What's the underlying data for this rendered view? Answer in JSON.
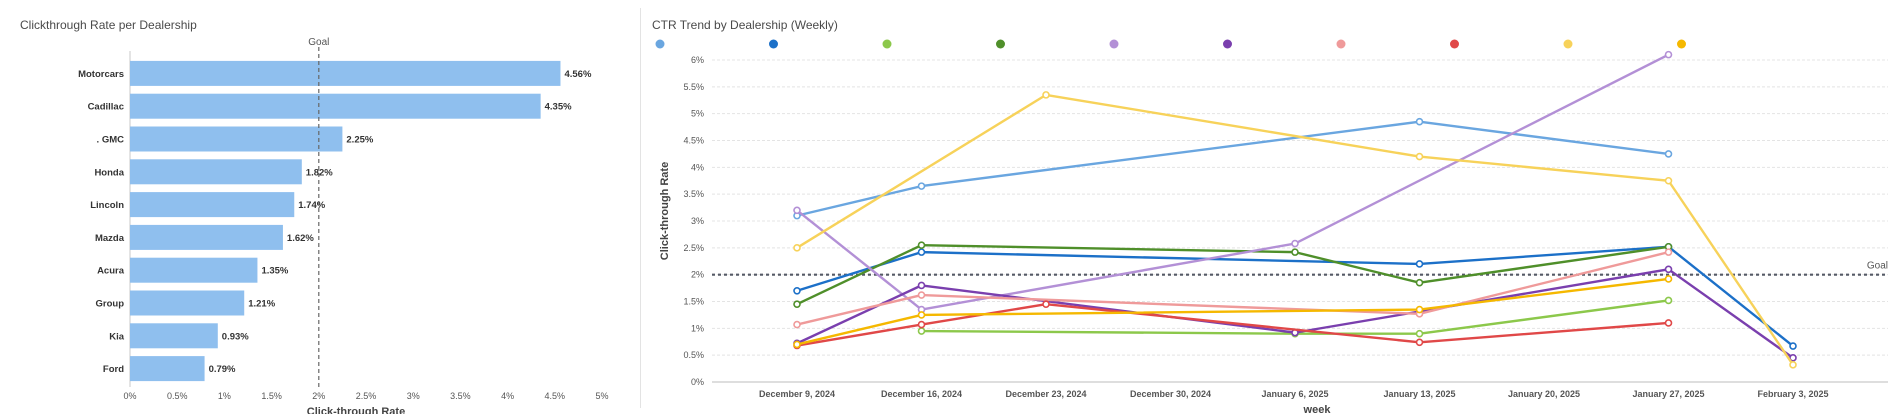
{
  "chart_data": [
    {
      "type": "bar",
      "orientation": "horizontal",
      "title": "Clickthrough Rate per Dealership",
      "xlabel": "Click-through Rate",
      "ylabel": "",
      "categories": [
        "Motorcars",
        "Cadillac",
        ". GMC",
        "Honda",
        "Lincoln",
        "Mazda",
        "Acura",
        "Group",
        "Kia",
        "Ford"
      ],
      "values": [
        4.56,
        4.35,
        2.25,
        1.82,
        1.74,
        1.62,
        1.35,
        1.21,
        0.93,
        0.79
      ],
      "data_labels": [
        "4.56%",
        "4.35%",
        "2.25%",
        "1.82%",
        "1.74%",
        "1.62%",
        "1.35%",
        "1.21%",
        "0.93%",
        "0.79%"
      ],
      "xlim": [
        0,
        5
      ],
      "x_ticks": [
        0,
        0.5,
        1,
        1.5,
        2,
        2.5,
        3,
        3.5,
        4,
        4.5,
        5
      ],
      "x_tick_labels": [
        "0%",
        "0.5%",
        "1%",
        "1.5%",
        "2%",
        "2.5%",
        "3%",
        "3.5%",
        "4%",
        "4.5%",
        "5%"
      ],
      "bar_color": "#8fbfee",
      "goal": {
        "value": 2,
        "label": "Goal"
      },
      "grid": false
    },
    {
      "type": "line",
      "title": "CTR Trend by Dealership (Weekly)",
      "xlabel": "week",
      "ylabel": "Click-through Rate",
      "x": [
        "December 9, 2024",
        "December 16, 2024",
        "December 23, 2024",
        "December 30, 2024",
        "January 6, 2025",
        "January 13, 2025",
        "January 20, 2025",
        "January 27, 2025",
        "February 3, 2025"
      ],
      "ylim": [
        0,
        6.2
      ],
      "y_ticks": [
        0,
        0.5,
        1,
        1.5,
        2,
        2.5,
        3,
        3.5,
        4,
        4.5,
        5,
        5.5,
        6
      ],
      "y_tick_labels": [
        "0%",
        "0.5%",
        "1%",
        "1.5%",
        "2%",
        "2.5%",
        "3%",
        "3.5%",
        "4%",
        "4.5%",
        "5%",
        "5.5%",
        "6%"
      ],
      "goal": {
        "value": 2,
        "label": "Goal"
      },
      "grid": true,
      "legend": "top-left",
      "series": [
        {
          "color": "#6aa6e0",
          "points": [
            [
              "December 9, 2024",
              3.1
            ],
            [
              "December 16, 2024",
              3.65
            ],
            [
              "January 13, 2025",
              4.85
            ],
            [
              "January 27, 2025",
              4.25
            ]
          ]
        },
        {
          "color": "#1c70c8",
          "points": [
            [
              "December 9, 2024",
              1.7
            ],
            [
              "December 16, 2024",
              2.42
            ],
            [
              "January 13, 2025",
              2.2
            ],
            [
              "January 27, 2025",
              2.52
            ],
            [
              "February 3, 2025",
              0.67
            ]
          ]
        },
        {
          "color": "#8cc84b",
          "points": [
            [
              "December 16, 2024",
              0.95
            ],
            [
              "January 6, 2025",
              0.9
            ],
            [
              "January 13, 2025",
              0.9
            ],
            [
              "January 27, 2025",
              1.52
            ]
          ]
        },
        {
          "color": "#4f8f2a",
          "points": [
            [
              "December 9, 2024",
              1.45
            ],
            [
              "December 16, 2024",
              2.55
            ],
            [
              "January 6, 2025",
              2.42
            ],
            [
              "January 13, 2025",
              1.85
            ],
            [
              "January 27, 2025",
              2.52
            ]
          ]
        },
        {
          "color": "#b390d6",
          "points": [
            [
              "December 9, 2024",
              3.2
            ],
            [
              "December 16, 2024",
              1.35
            ],
            [
              "January 6, 2025",
              2.58
            ],
            [
              "January 27, 2025",
              6.1
            ]
          ]
        },
        {
          "color": "#7a3fae",
          "points": [
            [
              "December 9, 2024",
              0.72
            ],
            [
              "December 16, 2024",
              1.8
            ],
            [
              "January 6, 2025",
              0.92
            ],
            [
              "January 27, 2025",
              2.1
            ],
            [
              "February 3, 2025",
              0.45
            ]
          ]
        },
        {
          "color": "#ef9a9a",
          "points": [
            [
              "December 9, 2024",
              1.07
            ],
            [
              "December 16, 2024",
              1.62
            ],
            [
              "January 13, 2025",
              1.27
            ],
            [
              "January 27, 2025",
              2.42
            ]
          ]
        },
        {
          "color": "#e04848",
          "points": [
            [
              "December 9, 2024",
              0.68
            ],
            [
              "December 16, 2024",
              1.07
            ],
            [
              "December 23, 2024",
              1.45
            ],
            [
              "January 13, 2025",
              0.74
            ],
            [
              "January 27, 2025",
              1.1
            ]
          ]
        },
        {
          "color": "#f7d25a",
          "points": [
            [
              "December 9, 2024",
              2.5
            ],
            [
              "December 23, 2024",
              5.35
            ],
            [
              "January 13, 2025",
              4.2
            ],
            [
              "January 27, 2025",
              3.75
            ],
            [
              "February 3, 2025",
              0.32
            ]
          ]
        },
        {
          "color": "#f5b800",
          "points": [
            [
              "December 9, 2024",
              0.7
            ],
            [
              "December 16, 2024",
              1.25
            ],
            [
              "January 13, 2025",
              1.35
            ],
            [
              "January 27, 2025",
              1.92
            ]
          ]
        }
      ]
    }
  ]
}
